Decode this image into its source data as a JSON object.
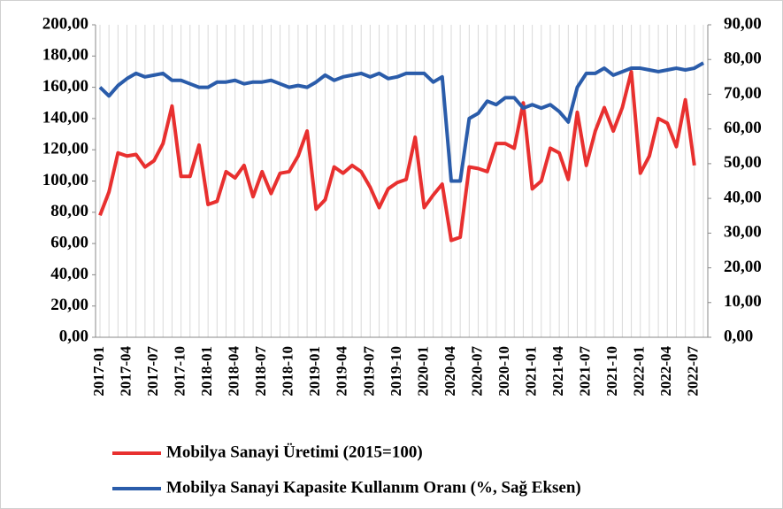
{
  "chart_data": {
    "type": "line",
    "categories": [
      "2017-01",
      null,
      null,
      "2017-04",
      null,
      null,
      "2017-07",
      null,
      null,
      "2017-10",
      null,
      null,
      "2018-01",
      null,
      null,
      "2018-04",
      null,
      null,
      "2018-07",
      null,
      null,
      "2018-10",
      null,
      null,
      "2019-01",
      null,
      null,
      "2019-04",
      null,
      null,
      "2019-07",
      null,
      null,
      "2019-10",
      null,
      null,
      "2020-01",
      null,
      null,
      "2020-04",
      null,
      null,
      "2020-07",
      null,
      null,
      "2020-10",
      null,
      null,
      "2021-01",
      null,
      null,
      "2021-04",
      null,
      null,
      "2021-07",
      null,
      null,
      "2021-10",
      null,
      null,
      "2022-01",
      null,
      null,
      "2022-04",
      null,
      null,
      "2022-07",
      null
    ],
    "series": [
      {
        "name": "Mobilya Sanayi Üretimi (2015=100)",
        "color": "#e8302f",
        "axis": "y",
        "values": [
          78,
          93,
          118,
          116,
          117,
          109,
          113,
          124,
          148,
          103,
          103,
          123,
          85,
          87,
          106,
          102,
          110,
          90,
          106,
          92,
          105,
          106,
          116,
          132,
          82,
          88,
          109,
          105,
          110,
          106,
          96,
          83,
          95,
          99,
          101,
          128,
          83,
          91,
          98,
          62,
          64,
          109,
          108,
          106,
          124,
          124,
          121,
          150,
          95,
          100,
          121,
          118,
          101,
          144,
          110,
          132,
          147,
          132,
          147,
          170,
          105,
          116,
          140,
          137,
          122,
          152,
          110,
          null
        ]
      },
      {
        "name": "Mobilya Sanayi Kapasite Kullanım Oranı (%, Sağ Eksen)",
        "color": "#2a5caa",
        "axis": "y2",
        "values": [
          72,
          69.5,
          72.5,
          74.5,
          76,
          75,
          75.5,
          76,
          74,
          74,
          73,
          72,
          72,
          73.5,
          73.5,
          74,
          73,
          73.5,
          73.5,
          74,
          73,
          72,
          72.5,
          72,
          73.5,
          75.5,
          74,
          75,
          75.5,
          76,
          75,
          76,
          74.5,
          75,
          76,
          76,
          76,
          73.5,
          75,
          45,
          45,
          63,
          64.5,
          68,
          67,
          69,
          69,
          66,
          67,
          66,
          67,
          65,
          62,
          72,
          76,
          76,
          77.5,
          75.5,
          76.5,
          77.5,
          77.5,
          77,
          76.5,
          77,
          77.5,
          77,
          77.5,
          79
        ]
      }
    ],
    "ylim": [
      0,
      200
    ],
    "yticks": [
      {
        "value": 0,
        "label": "0,00"
      },
      {
        "value": 20,
        "label": "20,00"
      },
      {
        "value": 40,
        "label": "40,00"
      },
      {
        "value": 60,
        "label": "60,00"
      },
      {
        "value": 80,
        "label": "80,00"
      },
      {
        "value": 100,
        "label": "100,00"
      },
      {
        "value": 120,
        "label": "120,00"
      },
      {
        "value": 140,
        "label": "140,00"
      },
      {
        "value": 160,
        "label": "160,00"
      },
      {
        "value": 180,
        "label": "180,00"
      },
      {
        "value": 200,
        "label": "200,00"
      }
    ],
    "y2lim": [
      0,
      90
    ],
    "y2ticks": [
      {
        "value": 0,
        "label": "0,00"
      },
      {
        "value": 10,
        "label": "10,00"
      },
      {
        "value": 20,
        "label": "20,00"
      },
      {
        "value": 30,
        "label": "30,00"
      },
      {
        "value": 40,
        "label": "40,00"
      },
      {
        "value": 50,
        "label": "50,00"
      },
      {
        "value": 60,
        "label": "60,00"
      },
      {
        "value": 70,
        "label": "70,00"
      },
      {
        "value": 80,
        "label": "80,00"
      },
      {
        "value": 90,
        "label": "90,00"
      }
    ],
    "grid": true,
    "legend": "bottom"
  }
}
